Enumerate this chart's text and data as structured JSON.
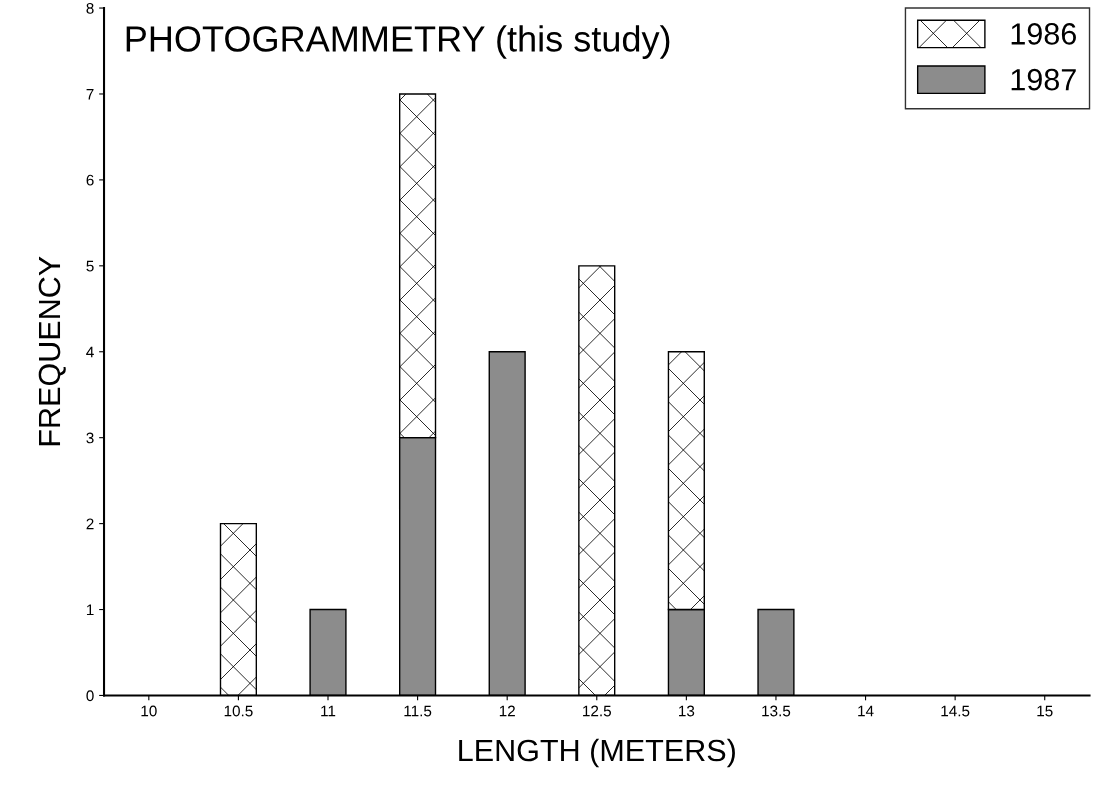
{
  "chart_data": {
    "type": "bar",
    "stacked": true,
    "title": "PHOTOGRAMMETRY (this study)",
    "xlabel": "LENGTH (METERS)",
    "ylabel": "FREQUENCY",
    "categories": [
      "10",
      "10.5",
      "11",
      "11.5",
      "12",
      "12.5",
      "13",
      "13.5",
      "14",
      "14.5",
      "15"
    ],
    "series": [
      {
        "name": "1987",
        "color": "#8c8c8c",
        "values": [
          0,
          0,
          1,
          3,
          4,
          0,
          1,
          1,
          0,
          0,
          0
        ]
      },
      {
        "name": "1986",
        "color": "#ffffff",
        "values": [
          0,
          2,
          0,
          4,
          0,
          5,
          3,
          0,
          0,
          0,
          0
        ]
      }
    ],
    "ylim": [
      0,
      8
    ],
    "yticks": [
      0,
      1,
      2,
      3,
      4,
      5,
      6,
      7,
      8
    ],
    "grid": false,
    "legend": "top right"
  }
}
